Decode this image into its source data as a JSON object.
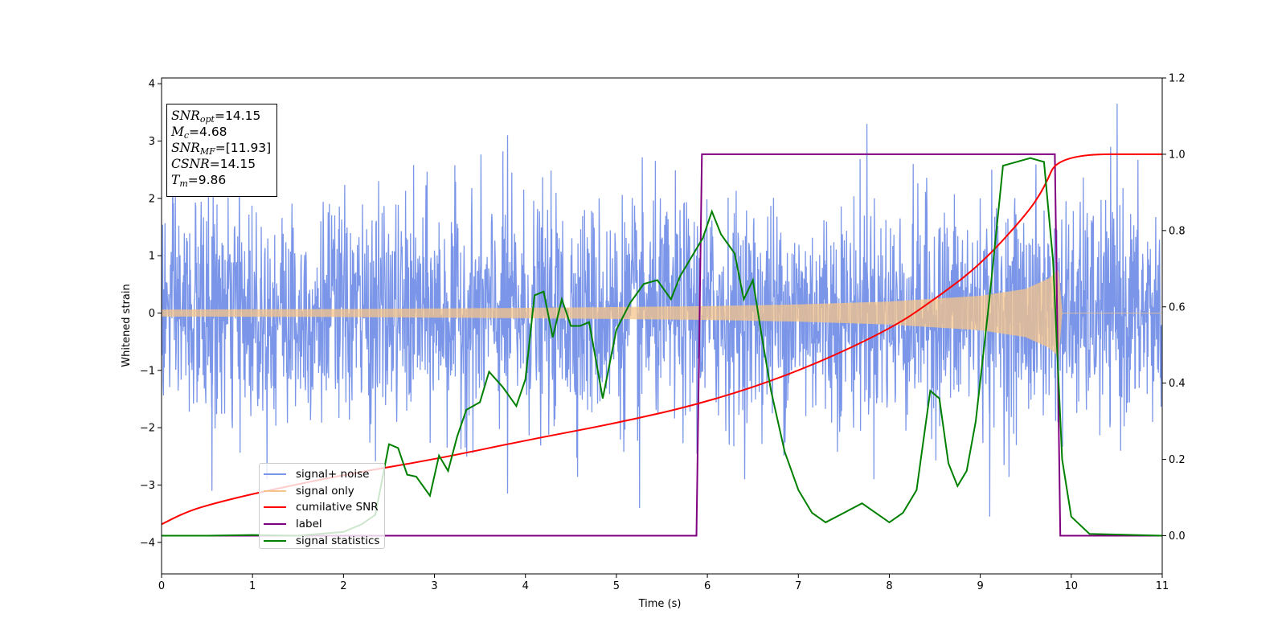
{
  "chart_data": {
    "type": "line",
    "xlabel": "Time (s)",
    "ylabel_left": "Whitened strain",
    "ylabel_right": "",
    "xlim": [
      0,
      11
    ],
    "ylim_left": [
      -4.55,
      4.1
    ],
    "ylim_right": [
      -0.1,
      1.2
    ],
    "xticks": [
      0,
      1,
      2,
      3,
      4,
      5,
      6,
      7,
      8,
      9,
      10,
      11
    ],
    "yticks_left": [
      -4,
      -3,
      -2,
      -1,
      0,
      1,
      2,
      3,
      4
    ],
    "yticks_right": [
      0.0,
      0.2,
      0.4,
      0.6,
      0.8,
      1.0,
      1.2
    ],
    "ytick_labels_left": [
      "−4",
      "−3",
      "−2",
      "−1",
      "0",
      "1",
      "2",
      "3",
      "4"
    ],
    "ytick_labels_right": [
      "0.0",
      "0.2",
      "0.4",
      "0.6",
      "0.8",
      "1.0",
      "1.2"
    ],
    "legend_placement": "lower-left",
    "grid": false,
    "series": [
      {
        "name": "signal+ noise",
        "axis": "left",
        "color": "#7b96e8",
        "style": "dense noise, std ≈ 0.9, peaks ≈ ±3.6",
        "peak_values": [
          {
            "x": 0.55,
            "y": -3.1
          },
          {
            "x": 3.8,
            "y": 3.1
          },
          {
            "x": 3.8,
            "y": -3.15
          },
          {
            "x": 5.25,
            "y": -3.4
          },
          {
            "x": 7.75,
            "y": 3.3
          },
          {
            "x": 9.1,
            "y": -3.55
          },
          {
            "x": 10.5,
            "y": 3.65
          }
        ]
      },
      {
        "name": "signal only",
        "axis": "left",
        "color": "#f5c48a",
        "style": "chirp, amplitude grows to ≈ 0.75 at merger, then 0",
        "amplitude_envelope": [
          {
            "x": 0,
            "y": 0.06
          },
          {
            "x": 2,
            "y": 0.07
          },
          {
            "x": 4,
            "y": 0.09
          },
          {
            "x": 6,
            "y": 0.12
          },
          {
            "x": 7,
            "y": 0.15
          },
          {
            "x": 8,
            "y": 0.2
          },
          {
            "x": 9,
            "y": 0.3
          },
          {
            "x": 9.5,
            "y": 0.42
          },
          {
            "x": 9.75,
            "y": 0.6
          },
          {
            "x": 9.86,
            "y": 0.75
          },
          {
            "x": 9.9,
            "y": 0
          },
          {
            "x": 11,
            "y": 0
          }
        ]
      },
      {
        "name": "cumilative SNR",
        "axis": "right",
        "color": "#ff0000",
        "points": [
          {
            "x": 0,
            "y": 0.03
          },
          {
            "x": 0.25,
            "y": 0.06
          },
          {
            "x": 0.5,
            "y": 0.08
          },
          {
            "x": 1,
            "y": 0.11
          },
          {
            "x": 2,
            "y": 0.16
          },
          {
            "x": 3,
            "y": 0.2
          },
          {
            "x": 4,
            "y": 0.25
          },
          {
            "x": 5,
            "y": 0.295
          },
          {
            "x": 6,
            "y": 0.35
          },
          {
            "x": 7,
            "y": 0.43
          },
          {
            "x": 8,
            "y": 0.54
          },
          {
            "x": 8.5,
            "y": 0.62
          },
          {
            "x": 9,
            "y": 0.71
          },
          {
            "x": 9.5,
            "y": 0.84
          },
          {
            "x": 9.7,
            "y": 0.91
          },
          {
            "x": 9.86,
            "y": 1.0
          },
          {
            "x": 11,
            "y": 1.0
          }
        ]
      },
      {
        "name": "label",
        "axis": "right",
        "color": "#800080",
        "points": [
          {
            "x": 0,
            "y": 0
          },
          {
            "x": 5.88,
            "y": 0
          },
          {
            "x": 5.94,
            "y": 1.0
          },
          {
            "x": 9.82,
            "y": 1.0
          },
          {
            "x": 9.88,
            "y": 0
          },
          {
            "x": 11,
            "y": 0
          }
        ]
      },
      {
        "name": "signal statistics",
        "axis": "right",
        "color": "#008000",
        "points": [
          {
            "x": 0,
            "y": 0.0
          },
          {
            "x": 0.5,
            "y": 0.0
          },
          {
            "x": 1,
            "y": 0.002
          },
          {
            "x": 1.5,
            "y": 0.0
          },
          {
            "x": 2,
            "y": 0.01
          },
          {
            "x": 2.2,
            "y": 0.03
          },
          {
            "x": 2.35,
            "y": 0.055
          },
          {
            "x": 2.5,
            "y": 0.24
          },
          {
            "x": 2.6,
            "y": 0.23
          },
          {
            "x": 2.7,
            "y": 0.16
          },
          {
            "x": 2.8,
            "y": 0.155
          },
          {
            "x": 2.95,
            "y": 0.105
          },
          {
            "x": 3.05,
            "y": 0.21
          },
          {
            "x": 3.15,
            "y": 0.17
          },
          {
            "x": 3.25,
            "y": 0.26
          },
          {
            "x": 3.35,
            "y": 0.33
          },
          {
            "x": 3.5,
            "y": 0.35
          },
          {
            "x": 3.6,
            "y": 0.43
          },
          {
            "x": 3.75,
            "y": 0.39
          },
          {
            "x": 3.9,
            "y": 0.34
          },
          {
            "x": 4.0,
            "y": 0.41
          },
          {
            "x": 4.1,
            "y": 0.63
          },
          {
            "x": 4.2,
            "y": 0.64
          },
          {
            "x": 4.3,
            "y": 0.52
          },
          {
            "x": 4.4,
            "y": 0.62
          },
          {
            "x": 4.5,
            "y": 0.55
          },
          {
            "x": 4.6,
            "y": 0.55
          },
          {
            "x": 4.7,
            "y": 0.56
          },
          {
            "x": 4.85,
            "y": 0.36
          },
          {
            "x": 5.0,
            "y": 0.54
          },
          {
            "x": 5.15,
            "y": 0.61
          },
          {
            "x": 5.3,
            "y": 0.66
          },
          {
            "x": 5.45,
            "y": 0.67
          },
          {
            "x": 5.6,
            "y": 0.62
          },
          {
            "x": 5.7,
            "y": 0.68
          },
          {
            "x": 5.85,
            "y": 0.74
          },
          {
            "x": 5.95,
            "y": 0.78
          },
          {
            "x": 6.05,
            "y": 0.85
          },
          {
            "x": 6.15,
            "y": 0.79
          },
          {
            "x": 6.3,
            "y": 0.74
          },
          {
            "x": 6.4,
            "y": 0.62
          },
          {
            "x": 6.5,
            "y": 0.67
          },
          {
            "x": 6.6,
            "y": 0.52
          },
          {
            "x": 6.7,
            "y": 0.38
          },
          {
            "x": 6.85,
            "y": 0.22
          },
          {
            "x": 7.0,
            "y": 0.12
          },
          {
            "x": 7.15,
            "y": 0.06
          },
          {
            "x": 7.3,
            "y": 0.035
          },
          {
            "x": 7.5,
            "y": 0.06
          },
          {
            "x": 7.7,
            "y": 0.085
          },
          {
            "x": 7.85,
            "y": 0.06
          },
          {
            "x": 8.0,
            "y": 0.035
          },
          {
            "x": 8.15,
            "y": 0.06
          },
          {
            "x": 8.3,
            "y": 0.12
          },
          {
            "x": 8.45,
            "y": 0.38
          },
          {
            "x": 8.55,
            "y": 0.36
          },
          {
            "x": 8.65,
            "y": 0.19
          },
          {
            "x": 8.75,
            "y": 0.13
          },
          {
            "x": 8.85,
            "y": 0.17
          },
          {
            "x": 8.95,
            "y": 0.3
          },
          {
            "x": 9.1,
            "y": 0.62
          },
          {
            "x": 9.25,
            "y": 0.97
          },
          {
            "x": 9.4,
            "y": 0.98
          },
          {
            "x": 9.55,
            "y": 0.99
          },
          {
            "x": 9.7,
            "y": 0.98
          },
          {
            "x": 9.8,
            "y": 0.72
          },
          {
            "x": 9.9,
            "y": 0.2
          },
          {
            "x": 10.0,
            "y": 0.05
          },
          {
            "x": 10.2,
            "y": 0.005
          },
          {
            "x": 11,
            "y": 0.0
          }
        ]
      }
    ]
  },
  "info_box": {
    "snr_opt": {
      "sym": "SNR",
      "sub": "opt",
      "value": "=14.15"
    },
    "mc": {
      "sym": "M",
      "sub": "c",
      "value": "=4.68"
    },
    "snr_mf": {
      "sym": "SNR",
      "sub": "MF",
      "value": "=[11.93]"
    },
    "csnr": {
      "sym": "CSNR",
      "sub": "",
      "value": "=14.15"
    },
    "tm": {
      "sym": "T",
      "sub": "m",
      "value": "=9.86"
    }
  },
  "legend": {
    "items": [
      {
        "label": "signal+ noise",
        "color": "#7b96e8"
      },
      {
        "label": "signal only",
        "color": "#f5c48a"
      },
      {
        "label": "cumilative SNR",
        "color": "#ff0000"
      },
      {
        "label": "label",
        "color": "#800080"
      },
      {
        "label": "signal statistics",
        "color": "#008000"
      }
    ]
  }
}
